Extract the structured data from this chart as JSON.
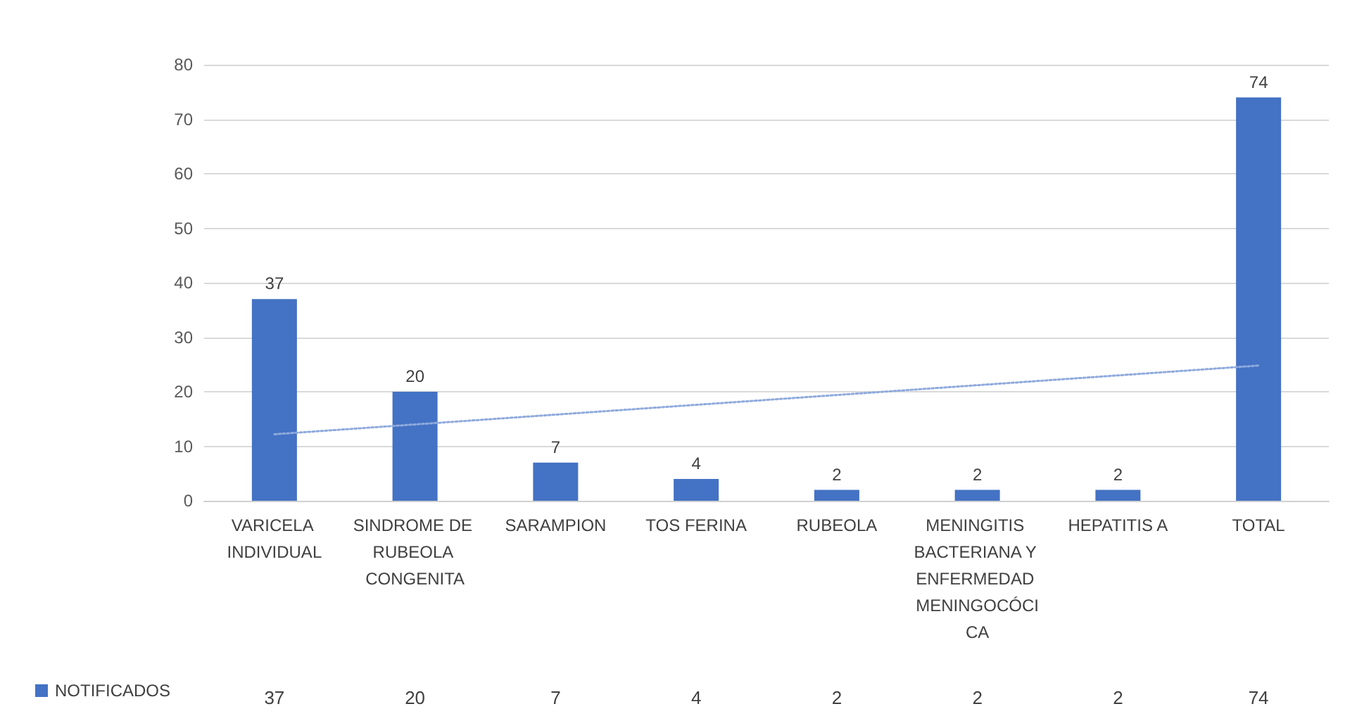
{
  "chart_data": {
    "type": "bar",
    "categories": [
      "VARICELA INDIVIDUAL",
      "SINDROME DE RUBEOLA CONGENITA",
      "SARAMPION",
      "TOS FERINA",
      "RUBEOLA",
      "MENINGITIS BACTERIANA Y ENFERMEDAD MENINGOCÓCICA",
      "HEPATITIS A",
      "TOTAL"
    ],
    "series": [
      {
        "name": "NOTIFICADOS",
        "color": "#4472c4",
        "values": [
          37,
          20,
          7,
          4,
          2,
          2,
          2,
          74
        ],
        "value_labels": [
          "37",
          "20",
          "7",
          "4",
          "2",
          "2",
          "2",
          "74"
        ]
      },
      {
        "type": "line",
        "color": "#8faadc",
        "line_style": "dotted",
        "marker": "none",
        "values": [
          12.2,
          14.0,
          15.8,
          17.6,
          19.4,
          21.2,
          23.0,
          24.8
        ]
      }
    ],
    "ylim": [
      0,
      80
    ],
    "yticks": [
      0,
      10,
      20,
      30,
      40,
      50,
      60,
      70,
      80
    ],
    "grid": "y",
    "legend": "bottom left"
  }
}
